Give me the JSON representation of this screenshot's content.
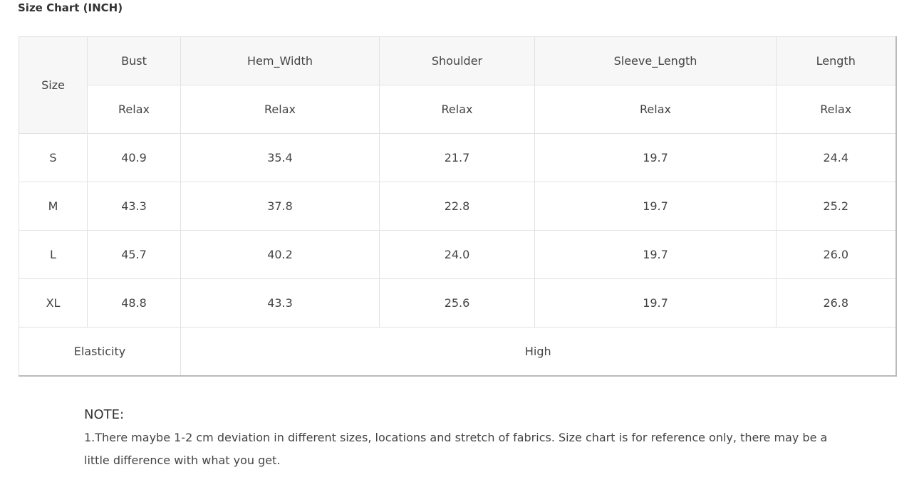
{
  "title": "Size Chart (INCH)",
  "table": {
    "size_header": "Size",
    "columns": [
      "Bust",
      "Hem_Width",
      "Shoulder",
      "Sleeve_Length",
      "Length"
    ],
    "sub_headers": [
      "Relax",
      "Relax",
      "Relax",
      "Relax",
      "Relax"
    ],
    "rows": [
      {
        "size": "S",
        "values": [
          "40.9",
          "35.4",
          "21.7",
          "19.7",
          "24.4"
        ]
      },
      {
        "size": "M",
        "values": [
          "43.3",
          "37.8",
          "22.8",
          "19.7",
          "25.2"
        ]
      },
      {
        "size": "L",
        "values": [
          "45.7",
          "40.2",
          "24.0",
          "19.7",
          "26.0"
        ]
      },
      {
        "size": "XL",
        "values": [
          "48.8",
          "43.3",
          "25.6",
          "19.7",
          "26.8"
        ]
      }
    ],
    "elasticity_label": "Elasticity",
    "elasticity_value": "High"
  },
  "note": {
    "title": "NOTE:",
    "text": "1.There maybe 1-2 cm deviation in different sizes, locations and stretch of fabrics. Size chart is for reference only, there may be a little difference with what you get."
  }
}
